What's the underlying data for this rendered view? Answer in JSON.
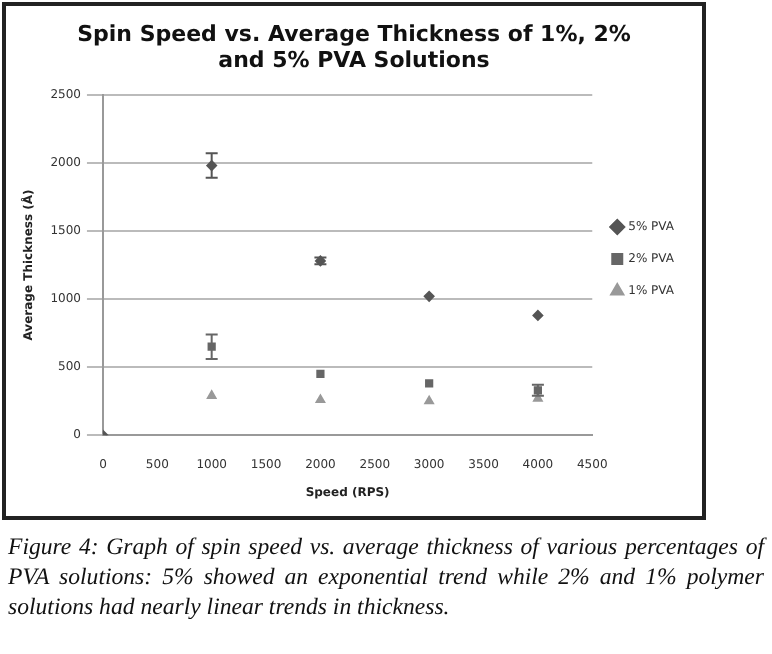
{
  "chart_data": {
    "type": "scatter",
    "title": "Spin Speed vs. Average Thickness of 1%, 2% and 5% PVA Solutions",
    "xlabel": "Speed (RPS)",
    "ylabel": "Average Thickness (Å)",
    "xlim": [
      0,
      4500
    ],
    "xticks": [
      0,
      500,
      1000,
      1500,
      2000,
      2500,
      3000,
      3500,
      4000,
      4500
    ],
    "ylim": [
      0,
      2500
    ],
    "yticks": [
      0,
      500,
      1000,
      1500,
      2000,
      2500
    ],
    "grid": "y",
    "legend": "right",
    "series": [
      {
        "name": "5% PVA",
        "color": "#555555",
        "marker": "diamond",
        "x": [
          0,
          1000,
          2000,
          3000,
          4000
        ],
        "values": [
          0,
          1980,
          1280,
          1020,
          880
        ],
        "errors": [
          null,
          90,
          25,
          null,
          null
        ]
      },
      {
        "name": "2% PVA",
        "color": "#666666",
        "marker": "square",
        "x": [
          1000,
          2000,
          3000,
          4000
        ],
        "values": [
          650,
          450,
          380,
          330
        ],
        "errors": [
          90,
          null,
          null,
          40
        ]
      },
      {
        "name": "1% PVA",
        "color": "#999999",
        "marker": "triangle",
        "x": [
          1000,
          2000,
          3000,
          4000
        ],
        "values": [
          290,
          260,
          250,
          270
        ]
      }
    ],
    "annotations": [
      "Figure 4: Graph of spin speed vs. average thickness of various percentages of PVA solutions: 5% showed an exponential trend while 2% and 1% polymer solutions had nearly linear trends in thickness."
    ]
  }
}
